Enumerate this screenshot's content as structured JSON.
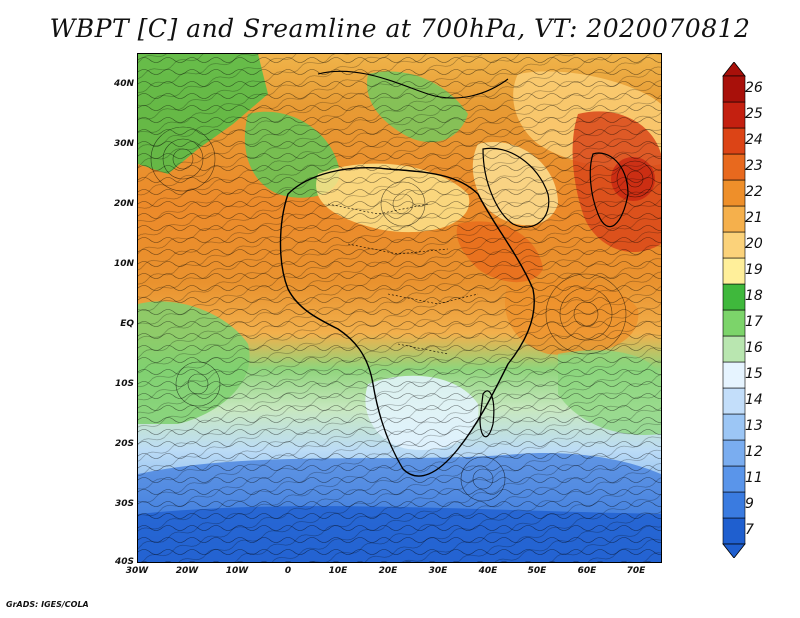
{
  "title": "WBPT [C] and Sreamline at 700hPa, VT: 2020070812",
  "credit": "GrADS: IGES/COLA",
  "map": {
    "lat_labels": [
      "40N",
      "30N",
      "20N",
      "10N",
      "EQ",
      "10S",
      "20S",
      "30S",
      "40S"
    ],
    "lon_labels": [
      "30W",
      "20W",
      "10W",
      "0",
      "10E",
      "20E",
      "30E",
      "40E",
      "50E",
      "60E",
      "70E"
    ]
  },
  "colorbar": {
    "labels": [
      "7",
      "9",
      "11",
      "12",
      "13",
      "14",
      "15",
      "16",
      "17",
      "18",
      "19",
      "20",
      "21",
      "22",
      "23",
      "24",
      "25",
      "26"
    ],
    "colors": [
      "#1f5fcf",
      "#3a7be0",
      "#5a95ea",
      "#7aadf0",
      "#9cc6f5",
      "#c3defa",
      "#e6f4ff",
      "#b9e6b0",
      "#7cd46a",
      "#3fb83c",
      "#ffef9a",
      "#fbd27a",
      "#f5b04c",
      "#ee8f2a",
      "#e8691e",
      "#dc4416",
      "#c42010",
      "#a8100a"
    ]
  }
}
